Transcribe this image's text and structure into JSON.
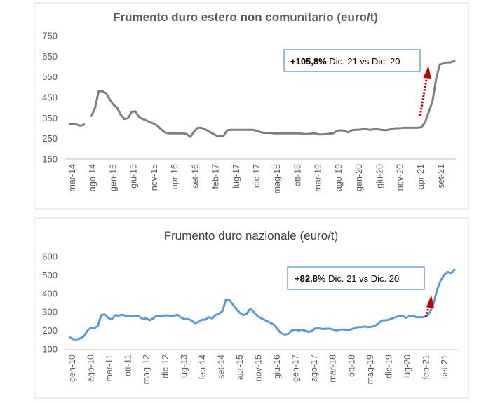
{
  "chart_data": [
    {
      "type": "line",
      "title": "Frumento duro estero non comunitario (euro/t)",
      "xlabel": "",
      "ylabel": "",
      "ylim": [
        150,
        750
      ],
      "yticks": [
        150,
        250,
        350,
        450,
        550,
        650,
        750
      ],
      "x_tick_labels": [
        "mar-14",
        "ago-14",
        "gen-15",
        "giu-15",
        "nov-15",
        "apr-16",
        "set-16",
        "feb-17",
        "lug-17",
        "dic-17",
        "mag-18",
        "ott-18",
        "mar-19",
        "ago-19",
        "gen-20",
        "giu-20",
        "nov-20",
        "apr-21",
        "set-21"
      ],
      "grid": false,
      "color": "#7f7f7f",
      "annotation": {
        "bold": "+105,8%",
        "text": " Dic. 21 vs Dic. 20"
      },
      "series": [
        {
          "name": "",
          "segments": [
            [
              [
                0,
                320
              ],
              [
                1,
                320
              ],
              [
                2,
                318
              ],
              [
                3,
                312
              ],
              [
                4,
                318
              ]
            ],
            [
              [
                6,
                360
              ],
              [
                7,
                400
              ],
              [
                8,
                482
              ],
              [
                9,
                480
              ],
              [
                10,
                470
              ],
              [
                11,
                440
              ],
              [
                12,
                415
              ],
              [
                13,
                400
              ],
              [
                14,
                365
              ],
              [
                15,
                345
              ],
              [
                16,
                350
              ],
              [
                17,
                380
              ],
              [
                18,
                382
              ],
              [
                19,
                355
              ],
              [
                20,
                345
              ],
              [
                21,
                338
              ],
              [
                22,
                330
              ],
              [
                23,
                322
              ],
              [
                24,
                312
              ],
              [
                25,
                295
              ],
              [
                26,
                280
              ],
              [
                27,
                275
              ],
              [
                28,
                275
              ],
              [
                29,
                275
              ],
              [
                30,
                275
              ],
              [
                31,
                275
              ],
              [
                32,
                272
              ],
              [
                33,
                258
              ],
              [
                34,
                285
              ],
              [
                35,
                302
              ],
              [
                36,
                302
              ],
              [
                37,
                295
              ],
              [
                38,
                285
              ],
              [
                39,
                275
              ],
              [
                40,
                265
              ],
              [
                41,
                262
              ],
              [
                42,
                262
              ],
              [
                43,
                290
              ],
              [
                44,
                292
              ],
              [
                45,
                292
              ],
              [
                46,
                292
              ],
              [
                47,
                292
              ],
              [
                48,
                292
              ],
              [
                49,
                292
              ],
              [
                50,
                292
              ],
              [
                51,
                288
              ],
              [
                52,
                282
              ],
              [
                53,
                278
              ],
              [
                54,
                278
              ],
              [
                55,
                277
              ],
              [
                56,
                275
              ],
              [
                57,
                275
              ],
              [
                58,
                275
              ],
              [
                59,
                275
              ],
              [
                60,
                275
              ],
              [
                61,
                275
              ],
              [
                62,
                275
              ],
              [
                63,
                275
              ],
              [
                64,
                272
              ],
              [
                65,
                272
              ],
              [
                66,
                275
              ],
              [
                67,
                275
              ],
              [
                68,
                270
              ],
              [
                69,
                270
              ],
              [
                70,
                272
              ],
              [
                71,
                274
              ],
              [
                72,
                276
              ],
              [
                73,
                287
              ],
              [
                74,
                290
              ],
              [
                75,
                288
              ],
              [
                76,
                280
              ],
              [
                77,
                290
              ],
              [
                78,
                292
              ],
              [
                79,
                293
              ],
              [
                80,
                295
              ],
              [
                81,
                295
              ],
              [
                82,
                292
              ],
              [
                83,
                295
              ],
              [
                84,
                295
              ],
              [
                85,
                292
              ],
              [
                86,
                290
              ],
              [
                87,
                292
              ],
              [
                88,
                298
              ],
              [
                89,
                300
              ],
              [
                90,
                300
              ],
              [
                91,
                302
              ],
              [
                92,
                302
              ],
              [
                93,
                302
              ],
              [
                94,
                302
              ],
              [
                95,
                302
              ],
              [
                96,
                305
              ],
              [
                97,
                330
              ],
              [
                98,
                380
              ],
              [
                99,
                430
              ],
              [
                100,
                540
              ],
              [
                101,
                610
              ],
              [
                102,
                615
              ],
              [
                103,
                620
              ],
              [
                104,
                620
              ],
              [
                105,
                628
              ]
            ]
          ]
        }
      ]
    },
    {
      "type": "line",
      "title": "Frumento duro nazionale (euro/t)",
      "xlabel": "",
      "ylabel": "",
      "ylim": [
        100,
        600
      ],
      "yticks": [
        100,
        200,
        300,
        400,
        500,
        600
      ],
      "x_tick_labels": [
        "gen-10",
        "ago-10",
        "mar-11",
        "ott-11",
        "mag-12",
        "dic-12",
        "lug-13",
        "feb-14",
        "set-14",
        "apr-15",
        "nov-15",
        "giu-16",
        "gen-17",
        "ago-17",
        "mar-18",
        "ott-18",
        "mag-19",
        "dic-19",
        "lug-20",
        "feb-21",
        "set-21"
      ],
      "grid": false,
      "color": "#5b9bd5",
      "annotation": {
        "bold": "+82,8%",
        "text": " Dic. 21 vs Dic. 20"
      },
      "series": [
        {
          "name": "",
          "segments": [
            [
              [
                0,
                162
              ],
              [
                2,
                152
              ],
              [
                4,
                152
              ],
              [
                6,
                158
              ],
              [
                8,
                170
              ],
              [
                10,
                200
              ],
              [
                12,
                215
              ],
              [
                14,
                212
              ],
              [
                16,
                225
              ],
              [
                18,
                283
              ],
              [
                20,
                287
              ],
              [
                22,
                268
              ],
              [
                24,
                260
              ],
              [
                26,
                283
              ],
              [
                28,
                280
              ],
              [
                30,
                285
              ],
              [
                32,
                280
              ],
              [
                34,
                278
              ],
              [
                36,
                275
              ],
              [
                38,
                278
              ],
              [
                40,
                275
              ],
              [
                42,
                262
              ],
              [
                44,
                265
              ],
              [
                46,
                255
              ],
              [
                48,
                265
              ],
              [
                50,
                280
              ],
              [
                52,
                278
              ],
              [
                54,
                280
              ],
              [
                56,
                282
              ],
              [
                58,
                280
              ],
              [
                60,
                280
              ],
              [
                62,
                285
              ],
              [
                64,
                270
              ],
              [
                66,
                262
              ],
              [
                68,
                262
              ],
              [
                70,
                255
              ],
              [
                72,
                240
              ],
              [
                74,
                245
              ],
              [
                76,
                258
              ],
              [
                78,
                258
              ],
              [
                80,
                272
              ],
              [
                82,
                265
              ],
              [
                84,
                283
              ],
              [
                86,
                290
              ],
              [
                88,
                305
              ],
              [
                90,
                368
              ],
              [
                92,
                365
              ],
              [
                94,
                340
              ],
              [
                96,
                315
              ],
              [
                98,
                295
              ],
              [
                100,
                283
              ],
              [
                102,
                290
              ],
              [
                104,
                318
              ],
              [
                106,
                300
              ],
              [
                108,
                280
              ],
              [
                110,
                268
              ],
              [
                112,
                258
              ],
              [
                114,
                250
              ],
              [
                116,
                240
              ],
              [
                118,
                230
              ],
              [
                120,
                205
              ],
              [
                122,
                185
              ],
              [
                124,
                178
              ],
              [
                126,
                182
              ],
              [
                128,
                200
              ],
              [
                130,
                205
              ],
              [
                132,
                200
              ],
              [
                134,
                205
              ],
              [
                136,
                198
              ],
              [
                138,
                192
              ],
              [
                140,
                200
              ],
              [
                142,
                215
              ],
              [
                144,
                212
              ],
              [
                146,
                208
              ],
              [
                148,
                210
              ],
              [
                150,
                210
              ],
              [
                152,
                205
              ],
              [
                154,
                200
              ],
              [
                156,
                205
              ],
              [
                158,
                205
              ],
              [
                160,
                203
              ],
              [
                162,
                205
              ],
              [
                164,
                212
              ],
              [
                166,
                218
              ],
              [
                168,
                218
              ],
              [
                170,
                222
              ],
              [
                172,
                218
              ],
              [
                174,
                220
              ],
              [
                176,
                225
              ],
              [
                178,
                238
              ],
              [
                180,
                255
              ],
              [
                182,
                255
              ],
              [
                184,
                258
              ],
              [
                186,
                265
              ],
              [
                188,
                272
              ],
              [
                190,
                278
              ],
              [
                192,
                280
              ],
              [
                194,
                268
              ],
              [
                196,
                278
              ],
              [
                198,
                280
              ],
              [
                200,
                272
              ],
              [
                202,
                272
              ],
              [
                204,
                272
              ],
              [
                206,
                278
              ],
              [
                208,
                300
              ],
              [
                210,
                350
              ],
              [
                212,
                420
              ],
              [
                214,
                470
              ],
              [
                216,
                500
              ],
              [
                218,
                515
              ],
              [
                220,
                510
              ],
              [
                222,
                528
              ]
            ]
          ]
        }
      ]
    }
  ]
}
